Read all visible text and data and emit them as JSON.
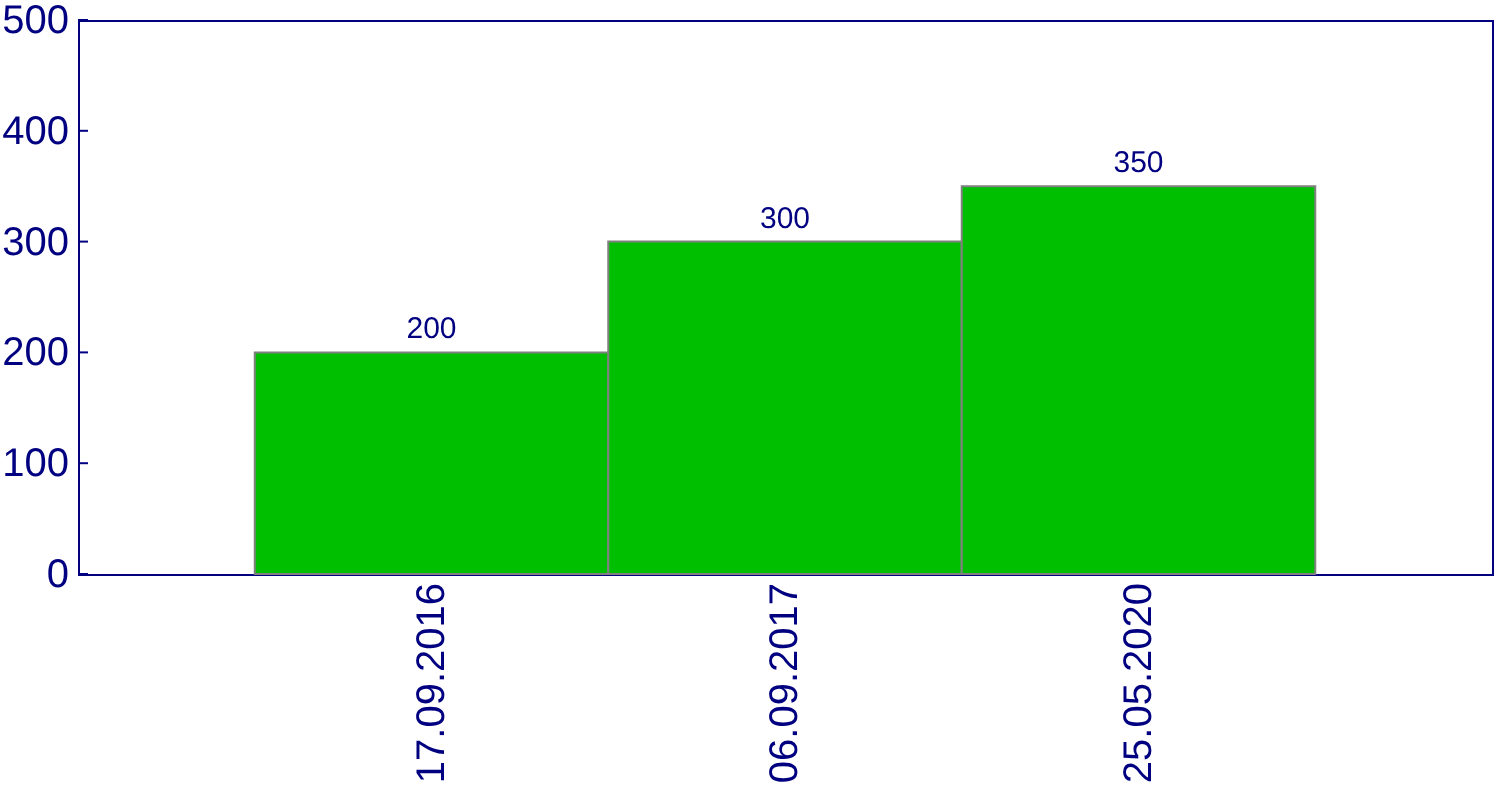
{
  "chart_data": {
    "type": "bar",
    "categories": [
      "17.09.2016",
      "06.09.2017",
      "25.05.2020"
    ],
    "values": [
      200,
      300,
      350
    ],
    "color": "#00bf00",
    "ylim": [
      0,
      500
    ],
    "yticks": [
      0,
      100,
      200,
      300,
      400,
      500
    ],
    "grid": false,
    "data_labels": true
  }
}
